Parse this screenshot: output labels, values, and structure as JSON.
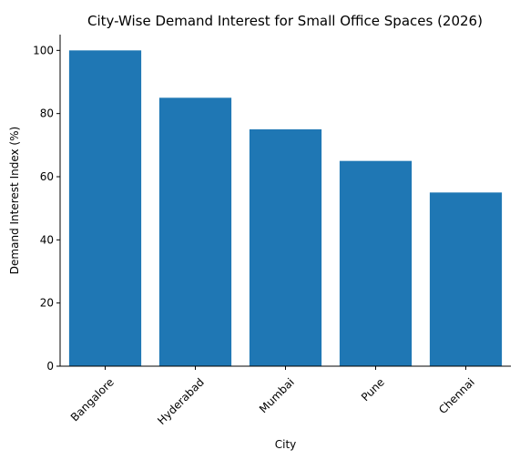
{
  "chart_data": {
    "type": "bar",
    "title": "City-Wise Demand Interest for Small Office Spaces (2026)",
    "xlabel": "City",
    "ylabel": "Demand Interest Index (%)",
    "categories": [
      "Bangalore",
      "Hyderabad",
      "Mumbai",
      "Pune",
      "Chennai"
    ],
    "values": [
      100,
      85,
      75,
      65,
      55
    ],
    "ylim": [
      0,
      105
    ],
    "yticks": [
      0,
      20,
      40,
      60,
      80,
      100
    ],
    "bar_color": "#1f77b4",
    "grid": false,
    "legend": false,
    "xtick_rotation": 45
  }
}
